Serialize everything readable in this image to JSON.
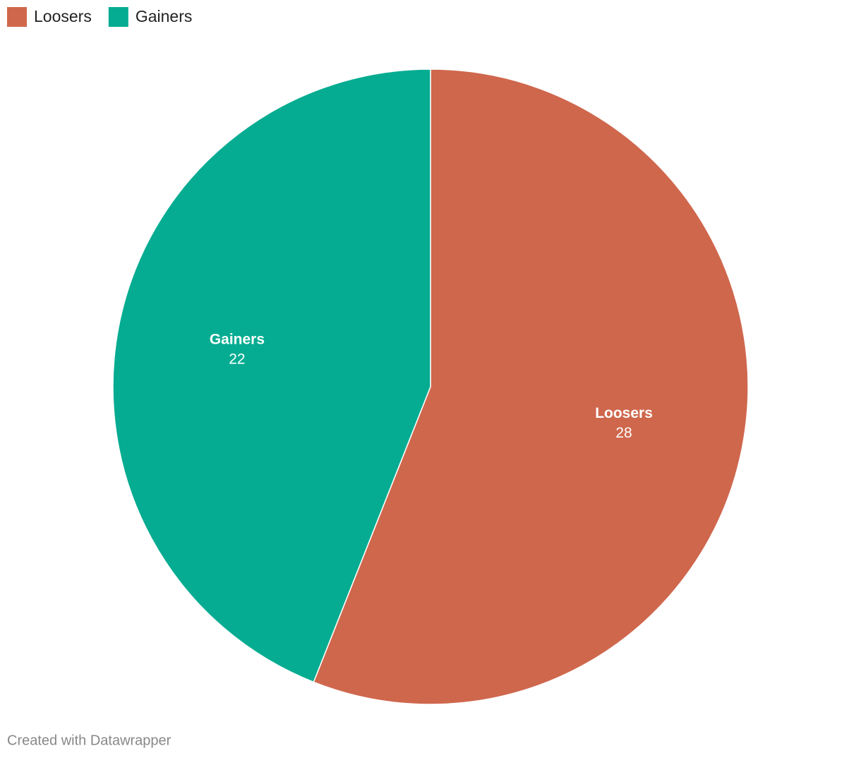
{
  "chart_data": {
    "type": "pie",
    "categories": [
      "Loosers",
      "Gainers"
    ],
    "values": [
      28,
      22
    ],
    "colors": [
      "#cf674d",
      "#05ac91"
    ],
    "legend": "top-left"
  },
  "footer": "Created with Datawrapper"
}
